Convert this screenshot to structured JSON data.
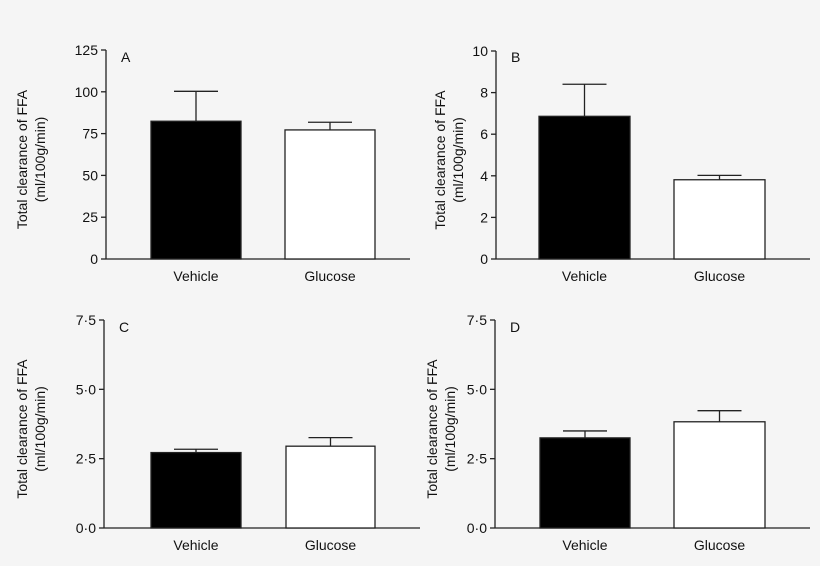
{
  "chart_data": [
    {
      "type": "bar",
      "panel_label": "A",
      "categories": [
        "Vehicle",
        "Glucose"
      ],
      "values": [
        82.4,
        77.2
      ],
      "error_upper": [
        100.3,
        81.8
      ],
      "bar_colors": [
        "#000000",
        "#ffffff"
      ],
      "ylabel": [
        "Total clearance of FFA",
        "(ml/100g/min)"
      ],
      "ylim": [
        0,
        125
      ],
      "yticks": [
        0,
        25,
        50,
        75,
        100,
        125
      ],
      "ytick_labels": [
        "0",
        "25",
        "50",
        "75",
        "100",
        "125"
      ],
      "grid": false
    },
    {
      "type": "bar",
      "panel_label": "B",
      "categories": [
        "Vehicle",
        "Glucose"
      ],
      "values": [
        6.86,
        3.81
      ],
      "error_upper": [
        8.4,
        4.02
      ],
      "bar_colors": [
        "#000000",
        "#ffffff"
      ],
      "ylabel": [
        "Total clearance of FFA",
        "(ml/100g/min)"
      ],
      "ylim": [
        0,
        10
      ],
      "yticks": [
        0,
        2,
        4,
        6,
        8,
        10
      ],
      "ytick_labels": [
        "0",
        "2",
        "4",
        "6",
        "8",
        "10"
      ],
      "grid": false
    },
    {
      "type": "bar",
      "panel_label": "C",
      "categories": [
        "Vehicle",
        "Glucose"
      ],
      "values": [
        2.72,
        2.95
      ],
      "error_upper": [
        2.84,
        3.26
      ],
      "bar_colors": [
        "#000000",
        "#ffffff"
      ],
      "ylabel": [
        "Total clearance of FFA",
        "(ml/100g/min)"
      ],
      "ylim": [
        0,
        7.5
      ],
      "yticks": [
        0,
        2.5,
        5,
        7.5
      ],
      "ytick_labels": [
        "0·0",
        "2·5",
        "5·0",
        "7·5"
      ],
      "grid": false
    },
    {
      "type": "bar",
      "panel_label": "D",
      "categories": [
        "Vehicle",
        "Glucose"
      ],
      "values": [
        3.25,
        3.83
      ],
      "error_upper": [
        3.5,
        4.23
      ],
      "bar_colors": [
        "#000000",
        "#ffffff"
      ],
      "ylabel": [
        "Total clearance of FFA",
        "(ml/100g/min)"
      ],
      "ylim": [
        0,
        7.5
      ],
      "yticks": [
        0,
        2.5,
        5,
        7.5
      ],
      "ytick_labels": [
        "0·0",
        "2·5",
        "5·0",
        "7·5"
      ],
      "grid": false
    }
  ]
}
